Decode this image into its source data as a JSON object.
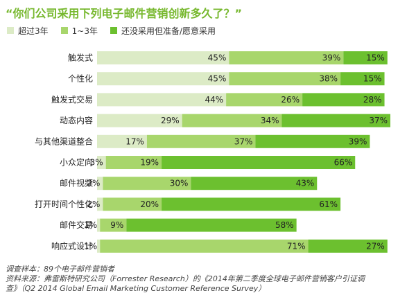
{
  "chart_data": {
    "type": "bar",
    "orientation": "horizontal",
    "stacked": true,
    "title": "“你们公司采用下列电子邮件营销创新多久了？”",
    "categories": [
      "触发式",
      "个性化",
      "触发式交易",
      "动态内容",
      "与其他渠道整合",
      "小众定向",
      "邮件视频",
      "打开时间个性化",
      "邮件交易",
      "响应式设计"
    ],
    "series": [
      {
        "name": "超过3年",
        "values": [
          45,
          45,
          44,
          29,
          17,
          3,
          2,
          2,
          1,
          1
        ],
        "labels": [
          "45%",
          "45%",
          "44%",
          "29%",
          "17%",
          "3%",
          "2%",
          "2%",
          "1%",
          "1%"
        ]
      },
      {
        "name": "1~3年",
        "values": [
          39,
          38,
          26,
          34,
          37,
          19,
          30,
          20,
          9,
          71
        ],
        "labels": [
          "39%",
          "38%",
          "26%",
          "34%",
          "37%",
          "19%",
          "30%",
          "20%",
          "9%",
          "71%"
        ]
      },
      {
        "name": "还没采用但准备/愿意采用",
        "values": [
          15,
          15,
          28,
          37,
          39,
          66,
          43,
          61,
          58,
          27
        ],
        "labels": [
          "15%",
          "15%",
          "28%",
          "37%",
          "39%",
          "66%",
          "43%",
          "61%",
          "58%",
          "27%"
        ]
      }
    ],
    "colors": [
      "#dcebc6",
      "#a8d66c",
      "#6cc02f"
    ],
    "xlim": [
      0,
      100
    ],
    "legend_placement": "top-left",
    "grid": false
  },
  "notes": {
    "sample": "调查样本：89个电子邮件营销者",
    "source_line1": "资料来源：弗雷斯特研究公司（Forrester Research）的《2014年第二季度全球电子邮件营销客户引证调",
    "source_line2": "查》（Q2 2014 Global Email Marketing Customer Reference Survey）"
  }
}
